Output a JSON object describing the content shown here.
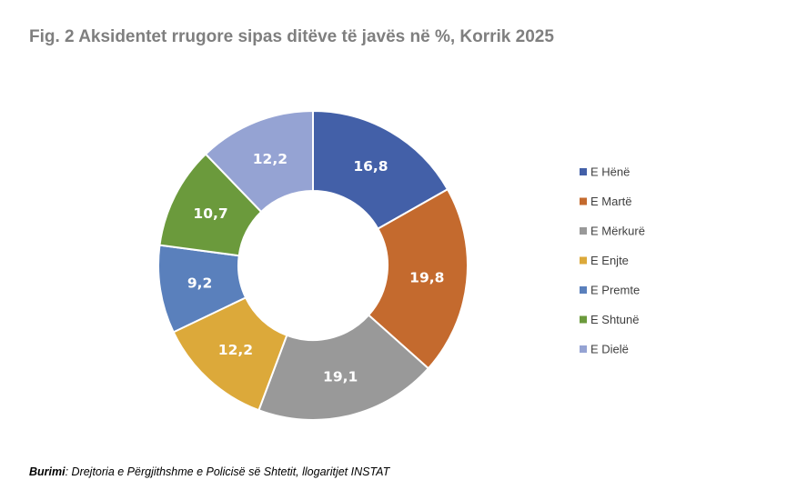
{
  "chart_data": {
    "type": "pie",
    "variant": "donut",
    "title": "Fig. 2 Aksidentet rrugore sipas ditëve të javës në %, Korrik 2025",
    "categories": [
      "E Hënë",
      "E Martë",
      "E Mërkurë",
      "E Enjte",
      "E Premte",
      "E Shtunë",
      "E Dielë"
    ],
    "values": [
      16.8,
      19.8,
      19.1,
      12.2,
      9.2,
      10.7,
      12.2
    ],
    "value_labels": [
      "16,8",
      "19,8",
      "19,1",
      "12,2",
      "9,2",
      "10,7",
      "12,2"
    ],
    "colors": [
      "#4360a8",
      "#c46a2e",
      "#999999",
      "#dca93a",
      "#5a80bc",
      "#6b9a3c",
      "#95a3d3"
    ],
    "legend": "right"
  },
  "source": {
    "label": "Burimi",
    "text": ": Drejtoria e Përgjithshme e Policisë së Shtetit, llogaritjet INSTAT"
  }
}
